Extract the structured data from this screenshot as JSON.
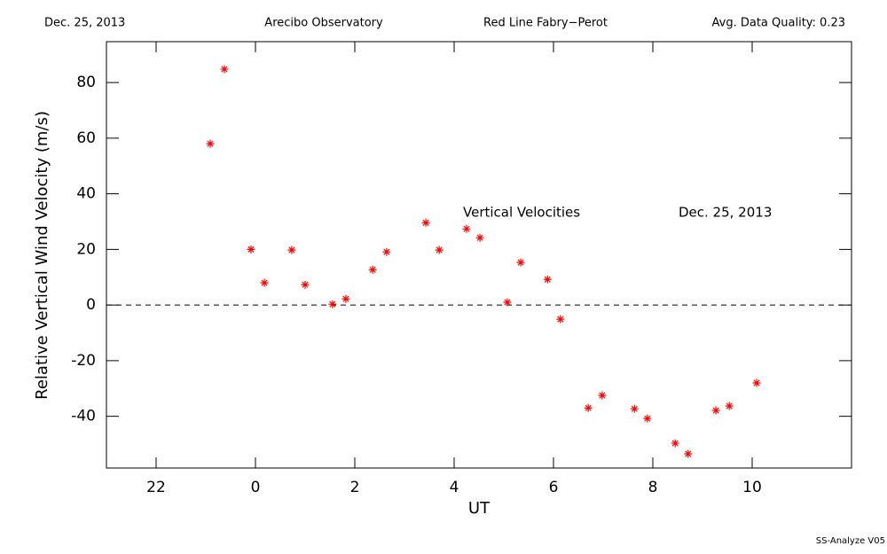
{
  "chart_data": {
    "type": "scatter",
    "header": [
      "Dec. 25, 2013",
      "Arecibo Observatory",
      "Red Line Fabry−Perot",
      "Avg. Data Quality: 0.23"
    ],
    "xlabel": "UT",
    "ylabel": "Relative Vertical Wind Velocity (m/s)",
    "annotations": [
      "Vertical Velocities",
      "Dec. 25, 2013"
    ],
    "footer": "SS-Analyze V05",
    "xlim": [
      -3,
      12
    ],
    "ylim": [
      -58.6,
      94.7
    ],
    "xticks": [
      {
        "value": -2,
        "label": "22"
      },
      0,
      2,
      4,
      6,
      8,
      10
    ],
    "yticks": [
      -40,
      -20,
      0,
      20,
      40,
      60,
      80
    ],
    "reference_line": 0,
    "series": [
      {
        "name": "Vertical Velocities",
        "color": "#ff0000",
        "x": [
          -0.91,
          -0.625,
          -0.09,
          0.18,
          0.73,
          1.0,
          1.55,
          1.82,
          2.36,
          2.64,
          3.43,
          3.7,
          4.25,
          4.52,
          5.07,
          5.34,
          5.88,
          6.14,
          6.7,
          6.98,
          7.63,
          7.89,
          8.45,
          8.71,
          9.27,
          9.54,
          10.09
        ],
        "values": [
          58,
          84.8,
          20,
          8,
          19.8,
          7.3,
          0.3,
          2.2,
          12.7,
          19.1,
          29.6,
          19.8,
          27.4,
          24.2,
          1.0,
          15.3,
          9.2,
          -5.1,
          -37,
          -32.5,
          -37.3,
          -40.8,
          -49.7,
          -53.5,
          -37.9,
          -36.3,
          -28
        ]
      }
    ]
  }
}
